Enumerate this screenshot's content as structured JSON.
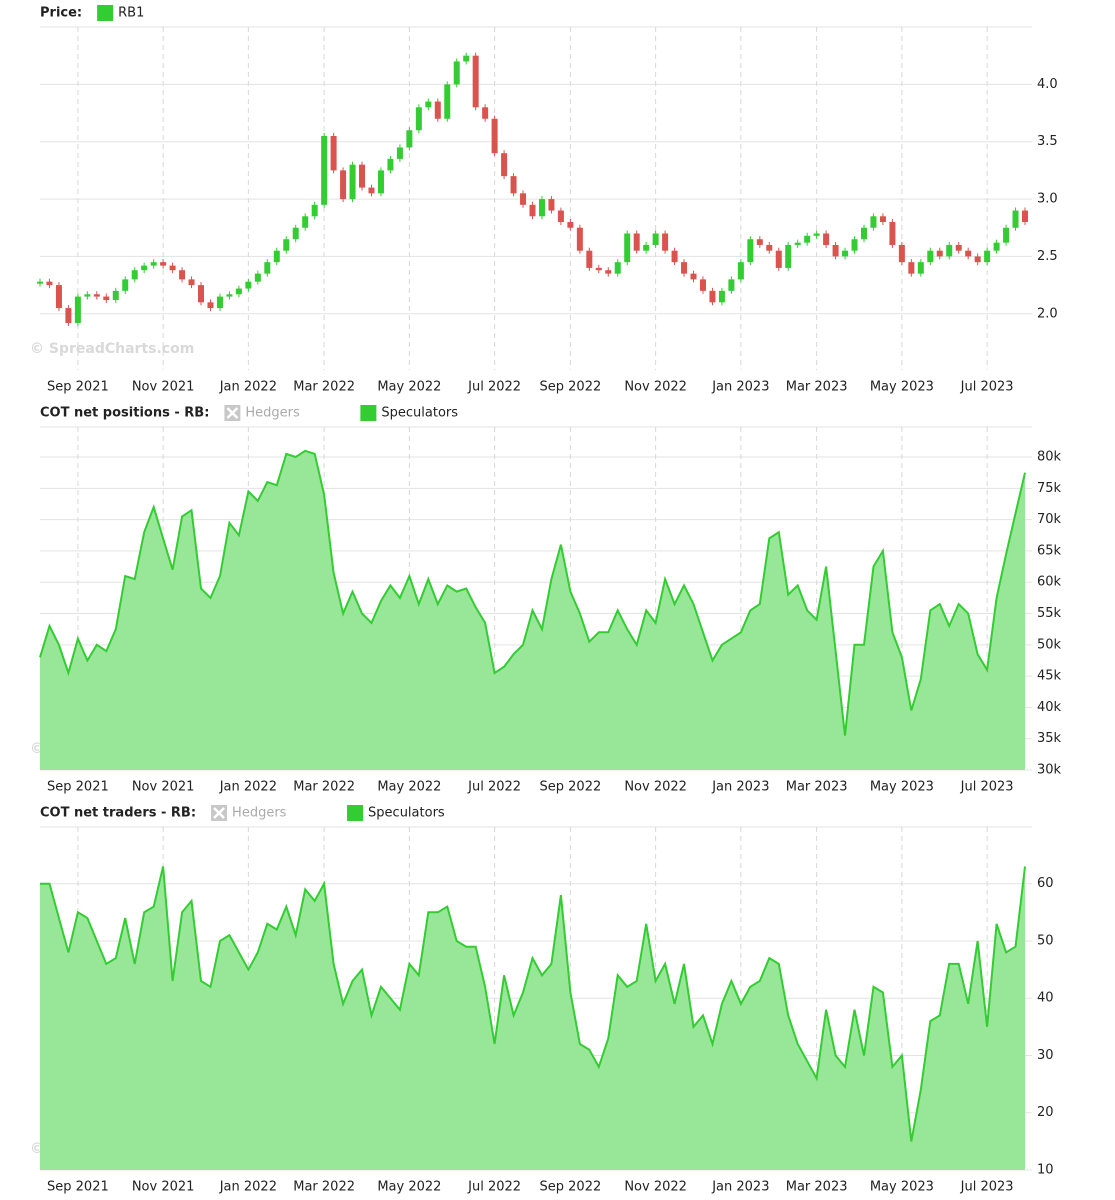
{
  "chart_data": [
    {
      "type": "candlestick",
      "title": "Price:",
      "watermark": "© SpreadCharts.com",
      "series": [
        {
          "name": "RB1",
          "color": "#33cc33",
          "down_color": "#d9534f",
          "values": [
            2.28,
            2.25,
            2.05,
            1.92,
            2.15,
            2.17,
            2.15,
            2.12,
            2.2,
            2.3,
            2.38,
            2.42,
            2.45,
            2.42,
            2.38,
            2.3,
            2.25,
            2.1,
            2.05,
            2.15,
            2.17,
            2.22,
            2.28,
            2.35,
            2.45,
            2.55,
            2.65,
            2.75,
            2.85,
            2.95,
            3.55,
            3.25,
            3.0,
            3.3,
            3.1,
            3.05,
            3.25,
            3.35,
            3.45,
            3.6,
            3.8,
            3.85,
            3.7,
            4.0,
            4.2,
            4.25,
            3.8,
            3.7,
            3.4,
            3.2,
            3.05,
            2.95,
            2.85,
            3.0,
            2.9,
            2.8,
            2.75,
            2.55,
            2.4,
            2.38,
            2.35,
            2.45,
            2.7,
            2.55,
            2.6,
            2.7,
            2.55,
            2.45,
            2.35,
            2.3,
            2.2,
            2.1,
            2.2,
            2.3,
            2.45,
            2.65,
            2.6,
            2.55,
            2.4,
            2.6,
            2.62,
            2.68,
            2.7,
            2.6,
            2.5,
            2.55,
            2.65,
            2.75,
            2.85,
            2.8,
            2.6,
            2.45,
            2.35,
            2.45,
            2.55,
            2.5,
            2.6,
            2.55,
            2.5,
            2.45,
            2.55,
            2.62,
            2.75,
            2.9,
            2.8
          ]
        }
      ],
      "categories": [
        null,
        null,
        null,
        null,
        "Sep 2021",
        null,
        null,
        null,
        null,
        null,
        null,
        null,
        null,
        "Nov 2021",
        null,
        null,
        null,
        null,
        null,
        null,
        null,
        null,
        "Jan 2022",
        null,
        null,
        null,
        null,
        null,
        null,
        null,
        "Mar 2022",
        null,
        null,
        null,
        null,
        null,
        null,
        null,
        null,
        "May 2022",
        null,
        null,
        null,
        null,
        null,
        null,
        null,
        null,
        "Jul 2022",
        null,
        null,
        null,
        null,
        null,
        null,
        null,
        "Sep 2022",
        null,
        null,
        null,
        null,
        null,
        null,
        null,
        null,
        "Nov 2022",
        null,
        null,
        null,
        null,
        null,
        null,
        null,
        null,
        "Jan 2023",
        null,
        null,
        null,
        null,
        null,
        null,
        null,
        "Mar 2023",
        null,
        null,
        null,
        null,
        null,
        null,
        null,
        null,
        "May 2023",
        null,
        null,
        null,
        null,
        null,
        null,
        null,
        null,
        "Jul 2023",
        null,
        null,
        null,
        null
      ],
      "ylim": [
        1.51,
        4.5
      ],
      "yticks": [
        {
          "value": 2.0,
          "label": "2.0"
        },
        {
          "value": 2.5,
          "label": "2.5"
        },
        {
          "value": 3.0,
          "label": "3.0"
        },
        {
          "value": 3.5,
          "label": "3.5"
        },
        {
          "value": 4.0,
          "label": "4.0"
        }
      ],
      "grid": true
    },
    {
      "type": "area",
      "title": "COT net positions - RB:",
      "watermark": "© SpreadCharts.com",
      "series": [
        {
          "name": "Hedgers",
          "visible": false
        },
        {
          "name": "Speculators",
          "color": "#33cc33",
          "fill": "#98e698",
          "values": [
            48000,
            53000,
            50000,
            45500,
            51000,
            47500,
            50000,
            49000,
            52500,
            61000,
            60500,
            68000,
            72000,
            67000,
            62000,
            70500,
            71500,
            59000,
            57500,
            61000,
            69500,
            67500,
            74500,
            73000,
            76000,
            75500,
            80500,
            80000,
            81000,
            80500,
            74000,
            61500,
            55000,
            58500,
            55000,
            53500,
            57000,
            59500,
            57500,
            61000,
            56500,
            60500,
            56500,
            59500,
            58500,
            59000,
            56000,
            53500,
            45500,
            46500,
            48500,
            50000,
            55500,
            52500,
            60500,
            66000,
            58500,
            55000,
            50500,
            52000,
            52000,
            55500,
            52500,
            50000,
            55500,
            53500,
            60500,
            56500,
            59500,
            56500,
            52000,
            47500,
            50000,
            51000,
            52000,
            55500,
            56500,
            67000,
            68000,
            58000,
            59500,
            55500,
            54000,
            62500,
            49000,
            35500,
            50000,
            50000,
            62500,
            65000,
            52000,
            48000,
            39500,
            44500,
            55500,
            56500,
            53000,
            56500,
            55000,
            48500,
            46000,
            57500,
            64500,
            71000,
            77500
          ]
        }
      ],
      "categories": [
        null,
        null,
        null,
        null,
        "Sep 2021",
        null,
        null,
        null,
        null,
        null,
        null,
        null,
        null,
        "Nov 2021",
        null,
        null,
        null,
        null,
        null,
        null,
        null,
        null,
        "Jan 2022",
        null,
        null,
        null,
        null,
        null,
        null,
        null,
        "Mar 2022",
        null,
        null,
        null,
        null,
        null,
        null,
        null,
        null,
        "May 2022",
        null,
        null,
        null,
        null,
        null,
        null,
        null,
        null,
        "Jul 2022",
        null,
        null,
        null,
        null,
        null,
        null,
        null,
        "Sep 2022",
        null,
        null,
        null,
        null,
        null,
        null,
        null,
        null,
        "Nov 2022",
        null,
        null,
        null,
        null,
        null,
        null,
        null,
        null,
        "Jan 2023",
        null,
        null,
        null,
        null,
        null,
        null,
        null,
        "Mar 2023",
        null,
        null,
        null,
        null,
        null,
        null,
        null,
        null,
        "May 2023",
        null,
        null,
        null,
        null,
        null,
        null,
        null,
        null,
        "Jul 2023",
        null,
        null,
        null,
        null
      ],
      "ylim": [
        30000,
        84800
      ],
      "yticks": [
        {
          "value": 30000,
          "label": "30k"
        },
        {
          "value": 35000,
          "label": "35k"
        },
        {
          "value": 40000,
          "label": "40k"
        },
        {
          "value": 45000,
          "label": "45k"
        },
        {
          "value": 50000,
          "label": "50k"
        },
        {
          "value": 55000,
          "label": "55k"
        },
        {
          "value": 60000,
          "label": "60k"
        },
        {
          "value": 65000,
          "label": "65k"
        },
        {
          "value": 70000,
          "label": "70k"
        },
        {
          "value": 75000,
          "label": "75k"
        },
        {
          "value": 80000,
          "label": "80k"
        }
      ],
      "grid": true
    },
    {
      "type": "area",
      "title": "COT net traders - RB:",
      "watermark": "© SpreadCharts.com",
      "series": [
        {
          "name": "Hedgers",
          "visible": false
        },
        {
          "name": "Speculators",
          "color": "#33cc33",
          "fill": "#98e698",
          "values": [
            60,
            60,
            54,
            48,
            55,
            54,
            50,
            46,
            47,
            54,
            46,
            55,
            56,
            63,
            43,
            55,
            57,
            43,
            42,
            50,
            51,
            48,
            45,
            48,
            53,
            52,
            56,
            51,
            59,
            57,
            60,
            46,
            39,
            43,
            45,
            37,
            42,
            40,
            38,
            46,
            44,
            55,
            55,
            56,
            50,
            49,
            49,
            42,
            32,
            44,
            37,
            41,
            47,
            44,
            46,
            58,
            41,
            32,
            31,
            28,
            33,
            44,
            42,
            43,
            53,
            43,
            46,
            39,
            46,
            35,
            37,
            32,
            39,
            43,
            39,
            42,
            43,
            47,
            46,
            37,
            32,
            29,
            26,
            38,
            30,
            28,
            38,
            30,
            42,
            41,
            28,
            30,
            15,
            24,
            36,
            37,
            46,
            46,
            39,
            50,
            35,
            53,
            48,
            49,
            63
          ]
        }
      ],
      "categories": [
        null,
        null,
        null,
        null,
        "Sep 2021",
        null,
        null,
        null,
        null,
        null,
        null,
        null,
        null,
        "Nov 2021",
        null,
        null,
        null,
        null,
        null,
        null,
        null,
        null,
        "Jan 2022",
        null,
        null,
        null,
        null,
        null,
        null,
        null,
        "Mar 2022",
        null,
        null,
        null,
        null,
        null,
        null,
        null,
        null,
        "May 2022",
        null,
        null,
        null,
        null,
        null,
        null,
        null,
        null,
        "Jul 2022",
        null,
        null,
        null,
        null,
        null,
        null,
        null,
        "Sep 2022",
        null,
        null,
        null,
        null,
        null,
        null,
        null,
        null,
        "Nov 2022",
        null,
        null,
        null,
        null,
        null,
        null,
        null,
        null,
        "Jan 2023",
        null,
        null,
        null,
        null,
        null,
        null,
        null,
        "Mar 2023",
        null,
        null,
        null,
        null,
        null,
        null,
        null,
        null,
        "May 2023",
        null,
        null,
        null,
        null,
        null,
        null,
        null,
        null,
        "Jul 2023",
        null,
        null,
        null,
        null
      ],
      "ylim": [
        10,
        69.9
      ],
      "yticks": [
        10,
        20,
        30,
        40,
        50,
        60
      ],
      "grid": true
    }
  ]
}
